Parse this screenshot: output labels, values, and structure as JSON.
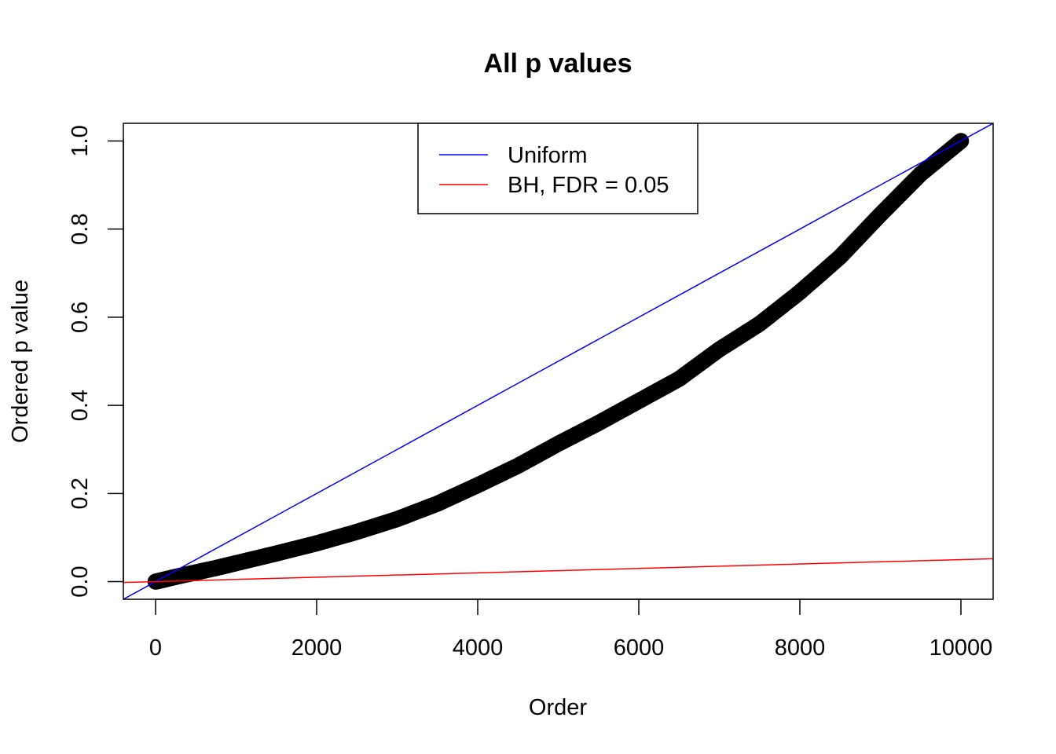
{
  "chart_data": {
    "type": "scatter",
    "title": "All p values",
    "xlabel": "Order",
    "ylabel": "Ordered p value",
    "xlim": [
      -400,
      10400
    ],
    "ylim": [
      -0.04,
      1.04
    ],
    "x_ticks": [
      0,
      2000,
      4000,
      6000,
      8000,
      10000
    ],
    "x_tick_labels": [
      "0",
      "2000",
      "4000",
      "6000",
      "8000",
      "10000"
    ],
    "y_ticks": [
      0.0,
      0.2,
      0.4,
      0.6,
      0.8,
      1.0
    ],
    "y_tick_labels": [
      "0.0",
      "0.2",
      "0.4",
      "0.6",
      "0.8",
      "1.0"
    ],
    "grid": false,
    "legend_position": "top-center",
    "series": [
      {
        "kind": "points",
        "color": "#000000",
        "x": [
          0,
          250,
          500,
          750,
          1000,
          1500,
          2000,
          2500,
          3000,
          3500,
          4000,
          4500,
          5000,
          5500,
          6000,
          6500,
          7000,
          7500,
          8000,
          8500,
          9000,
          9500,
          10000
        ],
        "values": [
          0.0,
          0.011,
          0.021,
          0.031,
          0.042,
          0.064,
          0.087,
          0.113,
          0.142,
          0.177,
          0.219,
          0.263,
          0.313,
          0.36,
          0.41,
          0.46,
          0.527,
          0.585,
          0.657,
          0.737,
          0.833,
          0.925,
          1.0
        ]
      },
      {
        "kind": "line",
        "name": "Uniform",
        "color": "#0000ff",
        "x": [
          -400,
          10400
        ],
        "values": [
          -0.04,
          1.04
        ]
      },
      {
        "kind": "line",
        "name": "BH, FDR = 0.05",
        "color": "#ff0000",
        "x": [
          -400,
          10400
        ],
        "values": [
          -0.002,
          0.052
        ]
      }
    ],
    "legend": [
      {
        "label": "Uniform",
        "color": "#0000ff"
      },
      {
        "label": "BH, FDR = 0.05",
        "color": "#ff0000"
      }
    ]
  }
}
